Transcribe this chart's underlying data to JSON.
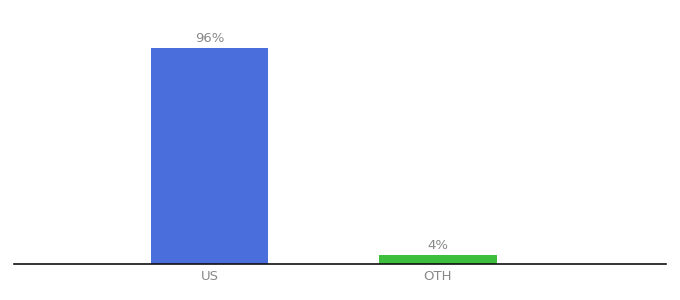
{
  "categories": [
    "US",
    "OTH"
  ],
  "values": [
    96,
    4
  ],
  "bar_colors": [
    "#4a6fdc",
    "#3dbf3d"
  ],
  "value_labels": [
    "96%",
    "4%"
  ],
  "background_color": "#ffffff",
  "ylim": [
    0,
    108
  ],
  "bar_positions": [
    0.3,
    0.65
  ],
  "bar_width": 0.18,
  "label_fontsize": 9.5,
  "tick_fontsize": 9.5,
  "xlim": [
    0.0,
    1.0
  ]
}
